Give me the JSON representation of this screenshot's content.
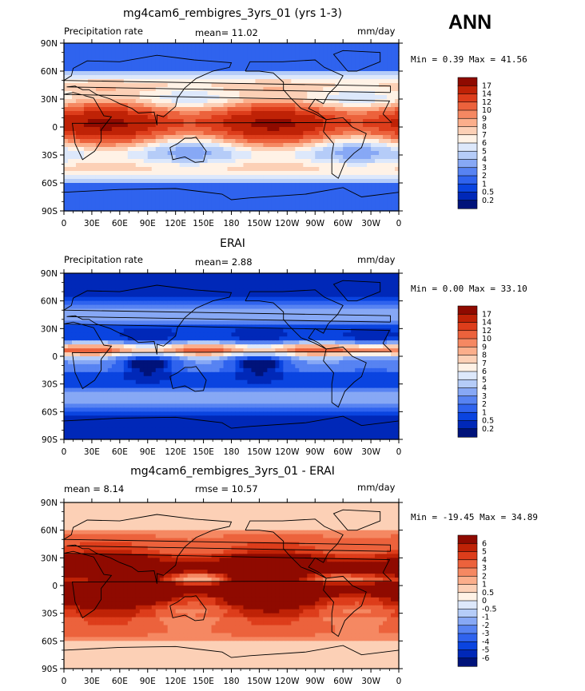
{
  "season": "ANN",
  "colors": {
    "abs_scale": [
      "#00137a",
      "#0028b8",
      "#0a44e0",
      "#2f63ee",
      "#5783f2",
      "#87a8f5",
      "#b5ccf8",
      "#dde8fb",
      "#fff2e6",
      "#fcd0b6",
      "#fbae8b",
      "#f58862",
      "#ec623c",
      "#dd3d1b",
      "#bf2206",
      "#8f0a00"
    ],
    "diff_scale": [
      "#00137a",
      "#0028b8",
      "#0a44e0",
      "#2f63ee",
      "#5783f2",
      "#87a8f5",
      "#b5ccf8",
      "#dde8fb",
      "#fff2e6",
      "#fcd0b6",
      "#fbae8b",
      "#f58862",
      "#ec623c",
      "#dd3d1b",
      "#bf2206",
      "#8f0a00"
    ]
  },
  "panels": [
    {
      "title": "mg4cam6_rembigres_3yrs_01 (yrs 1-3)",
      "left_label": "Precipitation rate",
      "center_label": "mean=   11.02",
      "units": "mm/day",
      "minmax": "Min =   0.39 Max =  41.56",
      "colorbar_labels": [
        "17",
        "14",
        "12",
        "10",
        "9",
        "8",
        "7",
        "6",
        "5",
        "4",
        "3",
        "2",
        "1",
        "0.5",
        "0.2"
      ]
    },
    {
      "title": "ERAI",
      "left_label": "Precipitation rate",
      "center_label": "mean=   2.88",
      "units": "mm/day",
      "minmax": "Min =   0.00 Max =  33.10",
      "colorbar_labels": [
        "17",
        "14",
        "12",
        "10",
        "9",
        "8",
        "7",
        "6",
        "5",
        "4",
        "3",
        "2",
        "1",
        "0.5",
        "0.2"
      ]
    },
    {
      "title": "mg4cam6_rembigres_3yrs_01 - ERAI",
      "left_label": "mean =    8.14",
      "center_label": "rmse =  10.57",
      "units": "mm/day",
      "minmax": "Min = -19.45 Max =  34.89",
      "colorbar_labels": [
        "6",
        "5",
        "4",
        "3",
        "2",
        "1",
        "0.5",
        "0",
        "-0.5",
        "-1",
        "-2",
        "-3",
        "-4",
        "-5",
        "-6"
      ]
    }
  ],
  "axes": {
    "lat_labels": [
      "90N",
      "60N",
      "30N",
      "0",
      "30S",
      "60S",
      "90S"
    ],
    "lon_labels": [
      "0",
      "30E",
      "60E",
      "90E",
      "120E",
      "150E",
      "180",
      "150W",
      "120W",
      "90W",
      "60W",
      "30W",
      "0"
    ]
  },
  "chart_data": [
    {
      "type": "heatmap",
      "title": "mg4cam6_rembigres_3yrs_01 (yrs 1-3)",
      "units": "mm/day",
      "mean": 11.02,
      "min": 0.39,
      "max": 41.56,
      "levels": [
        0.2,
        0.5,
        1,
        2,
        3,
        4,
        5,
        6,
        7,
        8,
        9,
        10,
        12,
        14,
        17
      ],
      "x_range": [
        0,
        360
      ],
      "y_range": [
        -90,
        90
      ]
    },
    {
      "type": "heatmap",
      "title": "ERAI",
      "units": "mm/day",
      "mean": 2.88,
      "min": 0.0,
      "max": 33.1,
      "levels": [
        0.2,
        0.5,
        1,
        2,
        3,
        4,
        5,
        6,
        7,
        8,
        9,
        10,
        12,
        14,
        17
      ],
      "x_range": [
        0,
        360
      ],
      "y_range": [
        -90,
        90
      ]
    },
    {
      "type": "heatmap",
      "title": "mg4cam6_rembigres_3yrs_01 - ERAI",
      "units": "mm/day",
      "mean": 8.14,
      "rmse": 10.57,
      "min": -19.45,
      "max": 34.89,
      "levels": [
        -6,
        -5,
        -4,
        -3,
        -2,
        -1,
        -0.5,
        0,
        0.5,
        1,
        2,
        3,
        4,
        5,
        6
      ],
      "x_range": [
        0,
        360
      ],
      "y_range": [
        -90,
        90
      ]
    }
  ]
}
